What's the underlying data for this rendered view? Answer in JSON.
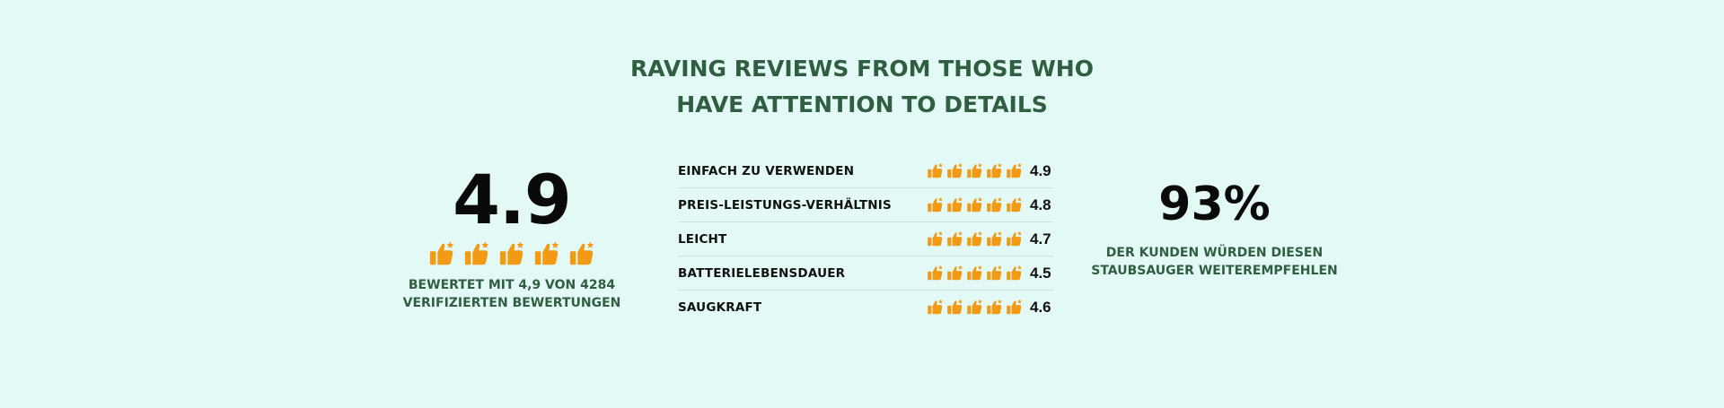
{
  "headline": {
    "line1": "RAVING REVIEWS FROM THOSE WHO",
    "line2": "HAVE ATTENTION TO DETAILS"
  },
  "overall": {
    "score": "4.9",
    "thumbs_count": 5,
    "caption_line1": "BEWERTET MIT 4,9 VON 4284",
    "caption_line2": "VERIFIZIERTEN BEWERTUNGEN"
  },
  "ratings": [
    {
      "label": "EINFACH ZU VERWENDEN",
      "value": "4.9"
    },
    {
      "label": "PREIS-LEISTUNGS-VERHÄLTNIS",
      "value": "4.8"
    },
    {
      "label": "LEICHT",
      "value": "4.7"
    },
    {
      "label": "BATTERIELEBENSDAUER",
      "value": "4.5"
    },
    {
      "label": "SAUGKRAFT",
      "value": "4.6"
    }
  ],
  "recommend": {
    "percent": "93%",
    "caption_line1": "DER KUNDEN WÜRDEN DIESEN",
    "caption_line2": "STAUBSAUGER WEITEREMPFEHLEN"
  },
  "colors": {
    "background": "#e2f9f6",
    "heading": "#2f5e40",
    "icon": "#f29a14"
  },
  "icon_name": "thumbs-up-star-icon"
}
